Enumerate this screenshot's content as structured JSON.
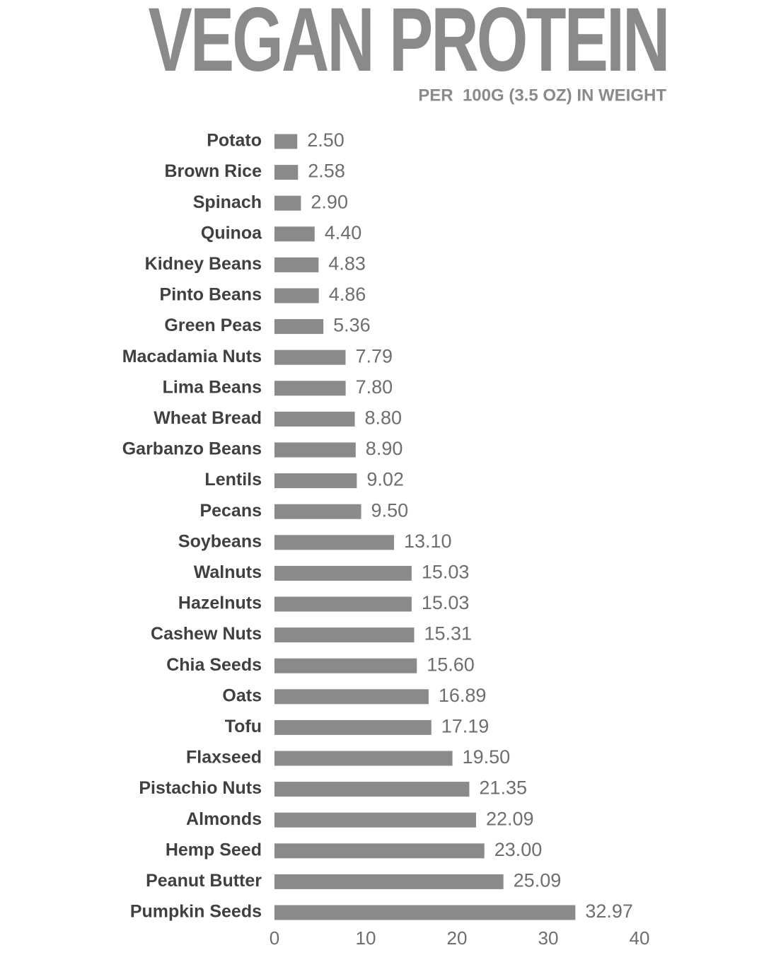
{
  "chart_data": {
    "type": "bar",
    "orientation": "horizontal",
    "title": "VEGAN PROTEIN",
    "subtitle": "PER  100G (3.5 OZ) IN WEIGHT",
    "categories": [
      "Potato",
      "Brown Rice",
      "Spinach",
      "Quinoa",
      "Kidney Beans",
      "Pinto Beans",
      "Green Peas",
      "Macadamia Nuts",
      "Lima Beans",
      "Wheat Bread",
      "Garbanzo Beans",
      "Lentils",
      "Pecans",
      "Soybeans",
      "Walnuts",
      "Hazelnuts",
      "Cashew Nuts",
      "Chia Seeds",
      "Oats",
      "Tofu",
      "Flaxseed",
      "Pistachio Nuts",
      "Almonds",
      "Hemp Seed",
      "Peanut Butter",
      "Pumpkin Seeds"
    ],
    "values": [
      2.5,
      2.58,
      2.9,
      4.4,
      4.83,
      4.86,
      5.36,
      7.79,
      7.8,
      8.8,
      8.9,
      9.02,
      9.5,
      13.1,
      15.03,
      15.03,
      15.31,
      15.6,
      16.89,
      17.19,
      19.5,
      21.35,
      22.09,
      23,
      25.09,
      32.97
    ],
    "value_labels": [
      "2.50",
      "2.58",
      "2.90",
      "4.40",
      "4.83",
      "4.86",
      "5.36",
      "7.79",
      "7.80",
      "8.80",
      "8.90",
      "9.02",
      "9.50",
      "13.10",
      "15.03",
      "15.03",
      "15.31",
      "15.60",
      "16.89",
      "17.19",
      "19.50",
      "21.35",
      "22.09",
      "23.00",
      "25.09",
      "32.97"
    ],
    "color": "#8a8a8a",
    "xlim": [
      0,
      40
    ],
    "xticks": [
      0,
      10,
      20,
      30,
      40
    ],
    "grid": false
  }
}
